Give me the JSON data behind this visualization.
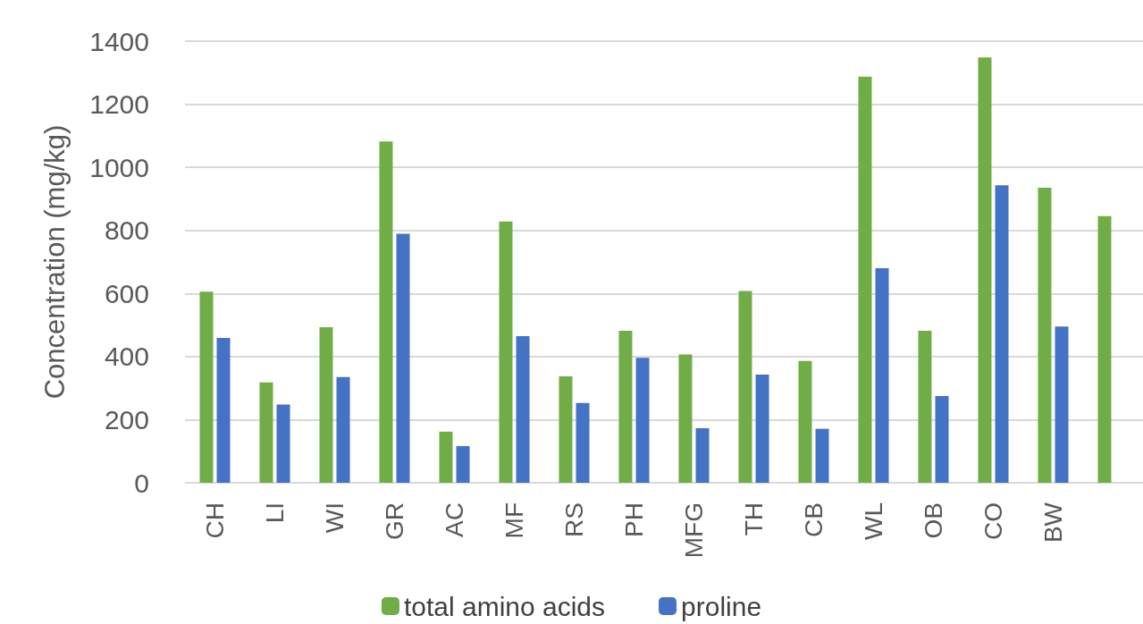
{
  "chart_data": {
    "type": "bar",
    "ylabel": "Concentration (mg/kg)",
    "categories": [
      "CH",
      "LI",
      "WI",
      "GR",
      "AC",
      "MF",
      "RS",
      "PH",
      "MFG",
      "TH",
      "CB",
      "WL",
      "OB",
      "CO",
      "BW",
      null
    ],
    "series": [
      {
        "name": "total amino acids",
        "color": "#70ad47",
        "values": [
          606,
          318,
          493,
          1082,
          162,
          828,
          337,
          482,
          407,
          608,
          386,
          1287,
          482,
          1348,
          935,
          845
        ]
      },
      {
        "name": "proline",
        "color": "#4472c4",
        "values": [
          459,
          248,
          335,
          789,
          116,
          465,
          253,
          396,
          173,
          343,
          171,
          680,
          275,
          943,
          495,
          null
        ]
      }
    ],
    "ylim": [
      0,
      1400
    ],
    "yticks": [
      0,
      200,
      400,
      600,
      800,
      1000,
      1200,
      1400
    ],
    "grid": "y",
    "legend": "bottom"
  }
}
